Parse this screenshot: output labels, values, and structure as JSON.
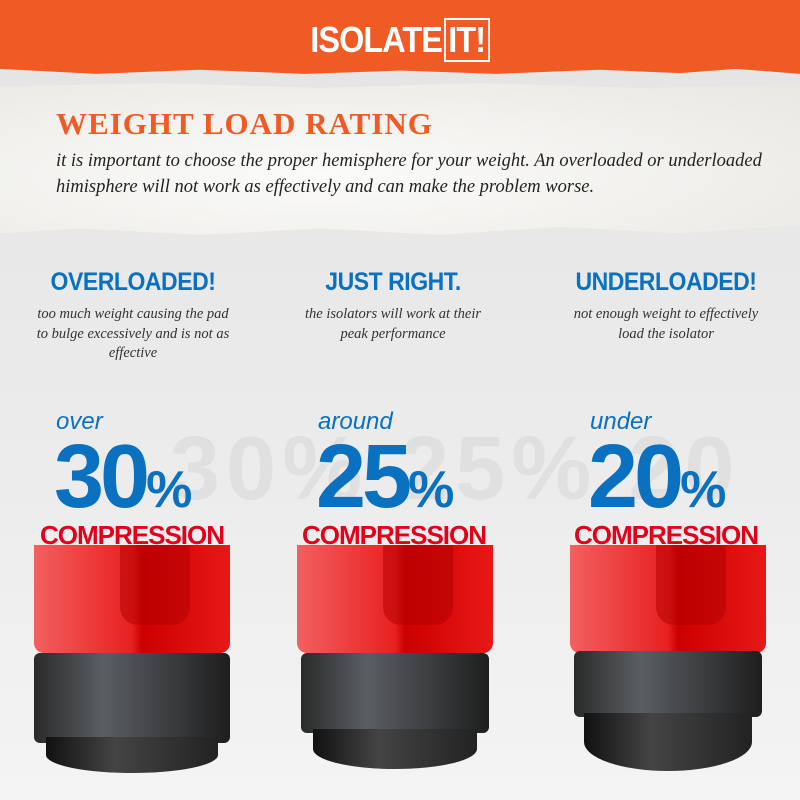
{
  "brand": {
    "logo_text": "ISOLATE",
    "logo_box": "IT!"
  },
  "header": {
    "title": "WEIGHT LOAD RATING",
    "intro": "it is important to choose the proper hemisphere for your weight. An overloaded or underloaded himisphere will not work as effectively and can make the problem worse."
  },
  "columns": [
    {
      "heading": "OVERLOADED!",
      "description": "too much weight causing the pad to bulge excessively and is not as effective",
      "qualifier": "over",
      "value": "30",
      "unit": "%",
      "label": "COMPRESSION"
    },
    {
      "heading": "JUST RIGHT.",
      "description": "the isolators will work at their peak performance",
      "qualifier": "around",
      "value": "25",
      "unit": "%",
      "label": "COMPRESSION"
    },
    {
      "heading": "UNDERLOADED!",
      "description": "not enough weight to effectively load the isolator",
      "qualifier": "under",
      "value": "20",
      "unit": "%",
      "label": "COMPRESSION"
    }
  ],
  "colors": {
    "brand_orange": "#f05a24",
    "blue": "#0a70c0",
    "red": "#e2001a"
  }
}
